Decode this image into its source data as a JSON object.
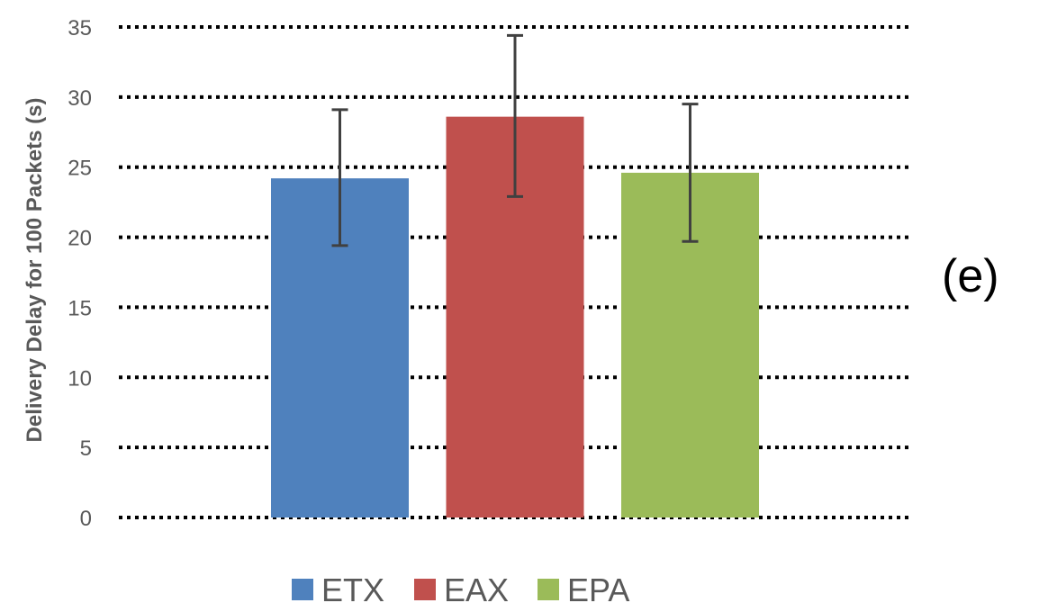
{
  "chart_data": {
    "type": "bar",
    "categories": [
      "ETX",
      "EAX",
      "EPA"
    ],
    "values": [
      24.2,
      28.6,
      24.6
    ],
    "error_low": [
      19.4,
      22.9,
      19.7
    ],
    "error_high": [
      29.1,
      34.4,
      29.5
    ],
    "colors": [
      "#4f81bd",
      "#c0504d",
      "#9bbb59"
    ],
    "title": "",
    "xlabel": "",
    "ylabel": "Delivery Delay for 100 Packets (s)",
    "ylim": [
      0,
      35
    ],
    "yticks": [
      0,
      5,
      10,
      15,
      20,
      25,
      30,
      35
    ],
    "grid": true,
    "legend_position": "bottom"
  },
  "panel_label": "(e)"
}
